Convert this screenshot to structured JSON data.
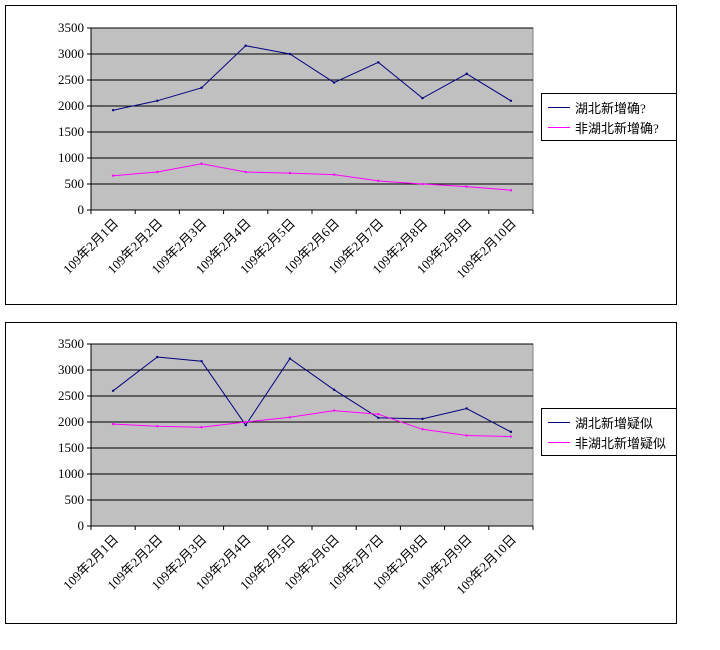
{
  "chart_data": [
    {
      "type": "line",
      "categories": [
        "109年2月1日",
        "109年2月2日",
        "109年2月3日",
        "109年2月4日",
        "109年2月5日",
        "109年2月6日",
        "109年2月7日",
        "109年2月8日",
        "109年2月9日",
        "109年2月10日"
      ],
      "ylim": [
        0,
        3500
      ],
      "yticks": [
        0,
        500,
        1000,
        1500,
        2000,
        2500,
        3000,
        3500
      ],
      "grid": true,
      "legend_position": "right",
      "series": [
        {
          "name": "湖北新增确?",
          "color": "#000080",
          "values": [
            1920,
            2100,
            2350,
            3160,
            3000,
            2450,
            2840,
            2150,
            2620,
            2100
          ]
        },
        {
          "name": "非湖北新增确?",
          "color": "#ff00ff",
          "values": [
            660,
            730,
            890,
            730,
            710,
            680,
            560,
            500,
            450,
            380
          ]
        }
      ]
    },
    {
      "type": "line",
      "categories": [
        "109年2月1日",
        "109年2月2日",
        "109年2月3日",
        "109年2月4日",
        "109年2月5日",
        "109年2月6日",
        "109年2月7日",
        "109年2月8日",
        "109年2月9日",
        "109年2月10日"
      ],
      "ylim": [
        0,
        3500
      ],
      "yticks": [
        0,
        500,
        1000,
        1500,
        2000,
        2500,
        3000,
        3500
      ],
      "grid": true,
      "legend_position": "right",
      "series": [
        {
          "name": "湖北新增疑似",
          "color": "#000080",
          "values": [
            2600,
            3250,
            3170,
            1940,
            3220,
            2620,
            2080,
            2060,
            2260,
            1810
          ]
        },
        {
          "name": "非湖北新增疑似",
          "color": "#ff00ff",
          "values": [
            1960,
            1920,
            1900,
            2000,
            2090,
            2220,
            2150,
            1860,
            1740,
            1720
          ]
        }
      ]
    }
  ]
}
